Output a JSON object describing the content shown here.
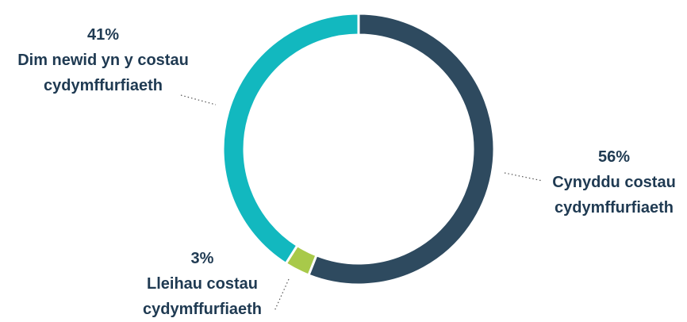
{
  "chart_data": {
    "type": "donut",
    "categories": [
      "Cynyddu costau cydymffurfiaeth",
      "Lleihau costau cydymffurfiaeth",
      "Dim newid yn y costau cydymffurfiaeth"
    ],
    "values": [
      56,
      3,
      41
    ],
    "value_labels": [
      "56%",
      "3%",
      "41%"
    ],
    "colors": [
      "#2e4a5f",
      "#a8c94a",
      "#12b8bf"
    ]
  }
}
